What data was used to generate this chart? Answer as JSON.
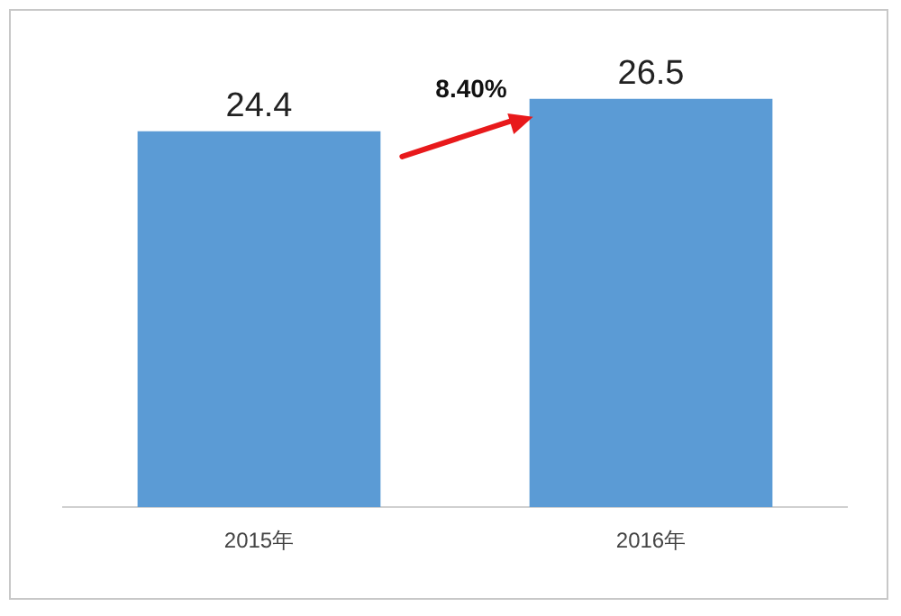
{
  "chart_data": {
    "type": "bar",
    "categories": [
      "2015年",
      "2016年"
    ],
    "values": [
      24.4,
      26.5
    ],
    "color": "#5b9bd5",
    "data_labels": true,
    "annotations": [
      "8.40%"
    ],
    "grid": false,
    "legend": false
  }
}
